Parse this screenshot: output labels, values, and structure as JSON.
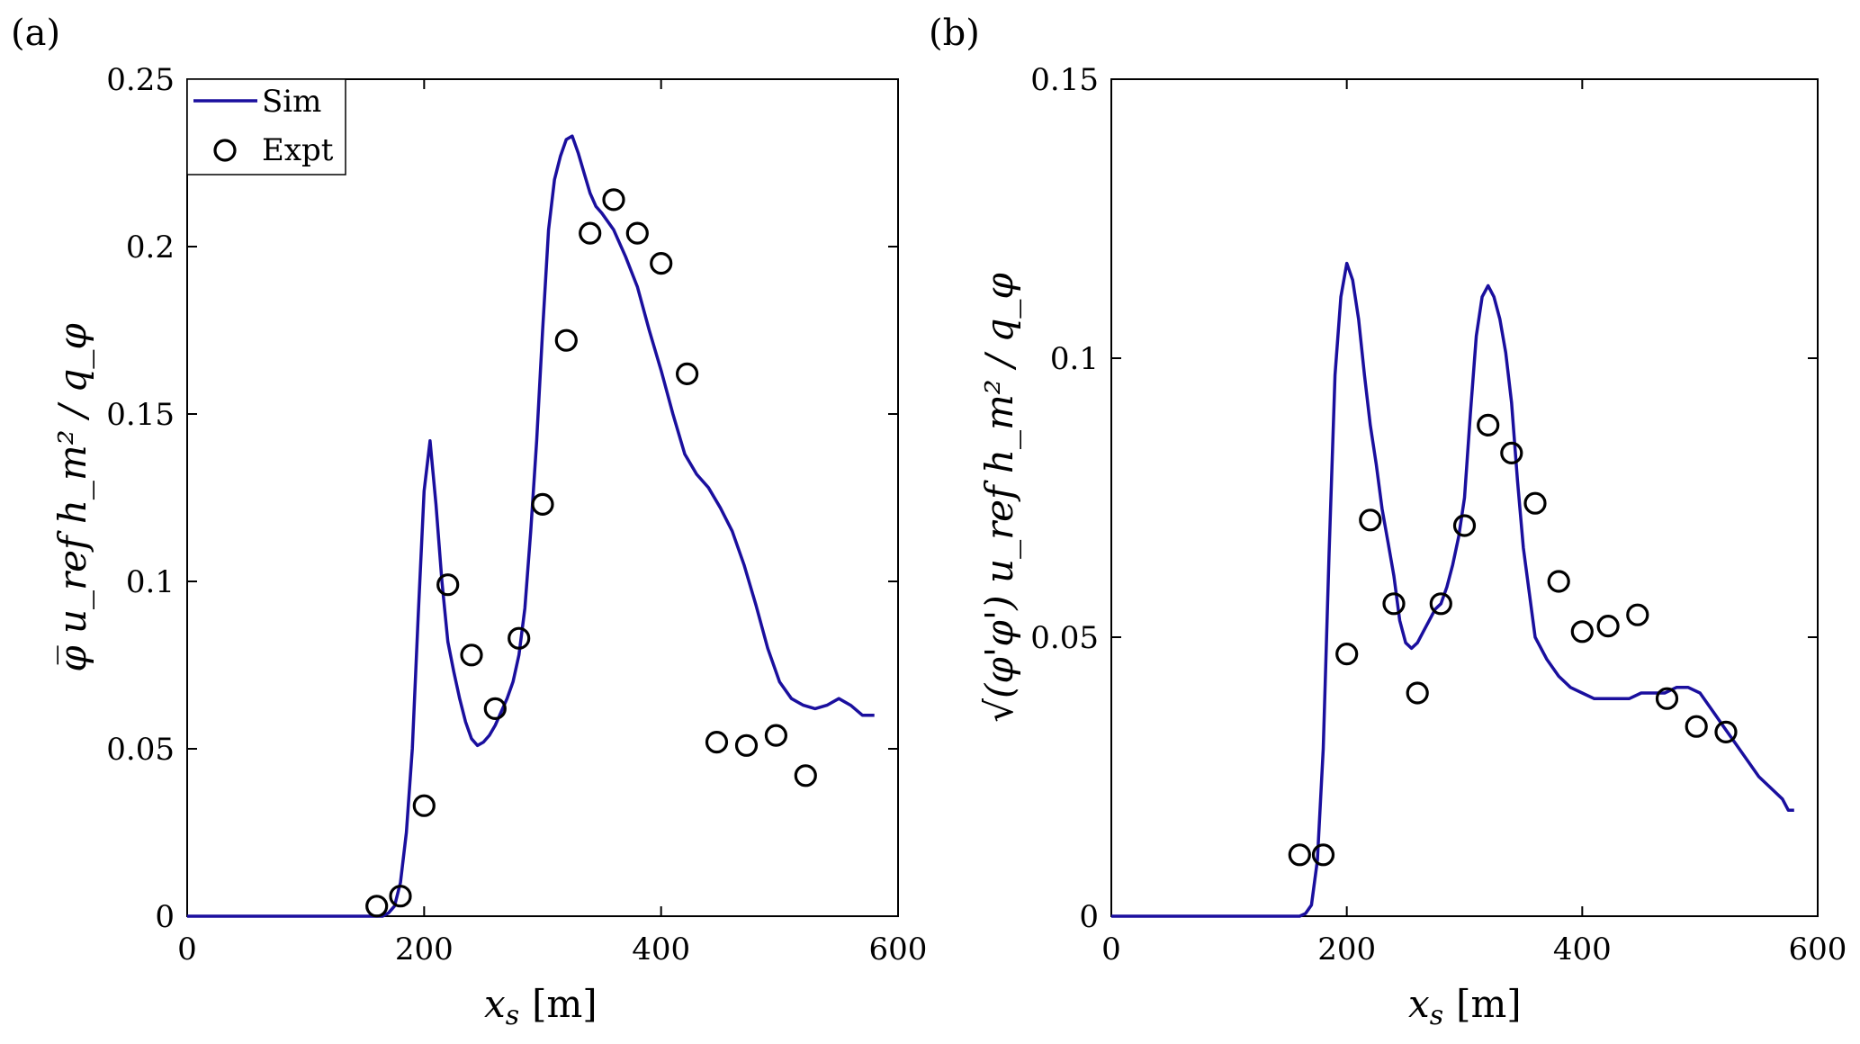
{
  "colors": {
    "sim": "#1a0f9e",
    "expt": "#000000",
    "axes": "#000000"
  },
  "chart_data": [
    {
      "panel": "(a)",
      "type": "line",
      "xlabel_main": "x",
      "xlabel_sub": "s",
      "xlabel_unit": "[m]",
      "ylabel": "φ̅ u_ref h_m² / q_φ",
      "xlim": [
        0,
        600
      ],
      "ylim": [
        0,
        0.25
      ],
      "xticks": [
        0,
        200,
        400,
        600
      ],
      "xtick_labels": [
        "0",
        "200",
        "400",
        "600"
      ],
      "yticks": [
        0,
        0.05,
        0.1,
        0.15,
        0.2,
        0.25
      ],
      "ytick_labels": [
        "0",
        "0.05",
        "0.1",
        "0.15",
        "0.2",
        "0.25"
      ],
      "legend": {
        "position": "top-left",
        "entries": [
          "Sim",
          "Expt"
        ]
      },
      "series": [
        {
          "name": "Sim",
          "kind": "line",
          "x": [
            0,
            150,
            160,
            165,
            170,
            175,
            180,
            185,
            190,
            195,
            200,
            205,
            210,
            215,
            220,
            225,
            230,
            235,
            240,
            245,
            250,
            255,
            260,
            265,
            270,
            275,
            280,
            285,
            290,
            295,
            300,
            305,
            310,
            315,
            320,
            325,
            330,
            335,
            340,
            345,
            350,
            360,
            370,
            380,
            390,
            400,
            410,
            420,
            430,
            440,
            450,
            460,
            470,
            480,
            490,
            500,
            510,
            520,
            530,
            540,
            550,
            560,
            570,
            575,
            580
          ],
          "y": [
            0,
            0,
            0,
            0,
            0.001,
            0.003,
            0.01,
            0.025,
            0.05,
            0.09,
            0.127,
            0.142,
            0.123,
            0.1,
            0.082,
            0.073,
            0.065,
            0.058,
            0.053,
            0.051,
            0.052,
            0.054,
            0.057,
            0.061,
            0.065,
            0.07,
            0.078,
            0.092,
            0.115,
            0.142,
            0.175,
            0.205,
            0.22,
            0.227,
            0.232,
            0.233,
            0.228,
            0.222,
            0.216,
            0.212,
            0.21,
            0.205,
            0.197,
            0.188,
            0.175,
            0.163,
            0.15,
            0.138,
            0.132,
            0.128,
            0.122,
            0.115,
            0.105,
            0.093,
            0.08,
            0.07,
            0.065,
            0.063,
            0.062,
            0.063,
            0.065,
            0.063,
            0.06,
            0.06,
            0.06
          ]
        },
        {
          "name": "Expt",
          "kind": "scatter",
          "x": [
            160,
            180,
            200,
            220,
            240,
            260,
            280,
            300,
            320,
            340,
            360,
            380,
            400,
            422,
            447,
            472,
            497,
            522
          ],
          "y": [
            0.003,
            0.006,
            0.033,
            0.099,
            0.078,
            0.062,
            0.083,
            0.123,
            0.172,
            0.204,
            0.214,
            0.204,
            0.195,
            0.162,
            0.052,
            0.051,
            0.054,
            0.042
          ]
        }
      ]
    },
    {
      "panel": "(b)",
      "type": "line",
      "xlabel_main": "x",
      "xlabel_sub": "s",
      "xlabel_unit": "[m]",
      "ylabel": "√(φ'φ') u_ref h_m² / q_φ",
      "xlim": [
        0,
        600
      ],
      "ylim": [
        0,
        0.15
      ],
      "xticks": [
        0,
        200,
        400,
        600
      ],
      "xtick_labels": [
        "0",
        "200",
        "400",
        "600"
      ],
      "yticks": [
        0,
        0.05,
        0.1,
        0.15
      ],
      "ytick_labels": [
        "0",
        "0.05",
        "0.1",
        "0.15"
      ],
      "series": [
        {
          "name": "Sim",
          "kind": "line",
          "x": [
            0,
            150,
            160,
            165,
            170,
            175,
            180,
            185,
            190,
            195,
            200,
            205,
            210,
            215,
            220,
            225,
            230,
            235,
            240,
            245,
            250,
            255,
            260,
            265,
            270,
            275,
            280,
            285,
            290,
            295,
            300,
            305,
            310,
            315,
            320,
            325,
            330,
            335,
            340,
            345,
            350,
            360,
            370,
            380,
            390,
            400,
            410,
            420,
            430,
            440,
            450,
            460,
            470,
            480,
            490,
            500,
            510,
            520,
            530,
            540,
            550,
            560,
            570,
            575,
            580
          ],
          "y": [
            0,
            0,
            0,
            0.0005,
            0.002,
            0.01,
            0.03,
            0.065,
            0.097,
            0.111,
            0.117,
            0.114,
            0.107,
            0.097,
            0.088,
            0.081,
            0.073,
            0.067,
            0.061,
            0.053,
            0.049,
            0.048,
            0.049,
            0.051,
            0.053,
            0.055,
            0.056,
            0.059,
            0.063,
            0.068,
            0.075,
            0.09,
            0.104,
            0.111,
            0.113,
            0.111,
            0.107,
            0.101,
            0.092,
            0.078,
            0.066,
            0.05,
            0.046,
            0.043,
            0.041,
            0.04,
            0.039,
            0.039,
            0.039,
            0.039,
            0.04,
            0.04,
            0.04,
            0.041,
            0.041,
            0.04,
            0.037,
            0.034,
            0.031,
            0.028,
            0.025,
            0.023,
            0.021,
            0.019,
            0.019
          ]
        },
        {
          "name": "Expt",
          "kind": "scatter",
          "x": [
            160,
            180,
            200,
            220,
            240,
            260,
            280,
            300,
            320,
            340,
            360,
            380,
            400,
            422,
            447,
            472,
            497,
            522
          ],
          "y": [
            0.011,
            0.011,
            0.047,
            0.071,
            0.056,
            0.04,
            0.056,
            0.07,
            0.088,
            0.083,
            0.074,
            0.06,
            0.051,
            0.052,
            0.054,
            0.039,
            0.034,
            0.033
          ]
        }
      ]
    }
  ]
}
